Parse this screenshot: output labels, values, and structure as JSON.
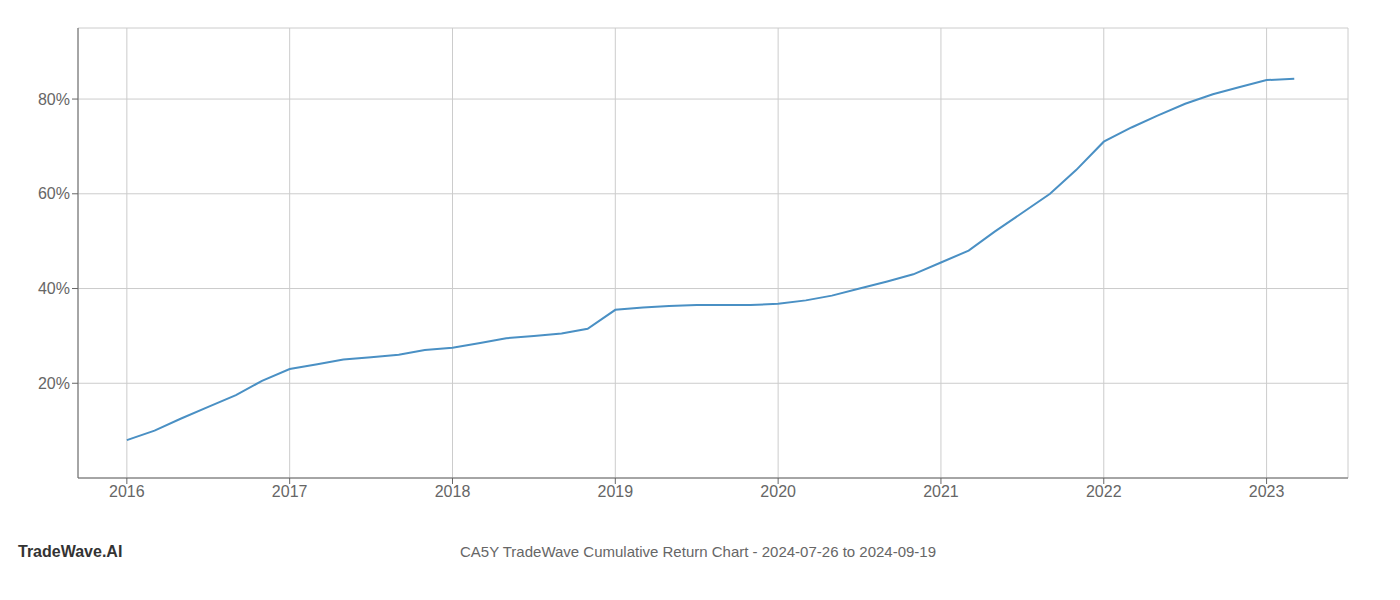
{
  "chart_data": {
    "type": "line",
    "title": "CA5Y TradeWave Cumulative Return Chart - 2024-07-26 to 2024-09-19",
    "annotations": [
      {
        "text": "TradeWave.AI"
      }
    ],
    "x": [
      2016.0,
      2016.17,
      2016.33,
      2016.5,
      2016.67,
      2016.83,
      2017.0,
      2017.17,
      2017.33,
      2017.5,
      2017.67,
      2017.83,
      2018.0,
      2018.17,
      2018.33,
      2018.5,
      2018.67,
      2018.83,
      2019.0,
      2019.17,
      2019.33,
      2019.5,
      2019.67,
      2019.83,
      2020.0,
      2020.17,
      2020.33,
      2020.5,
      2020.67,
      2020.83,
      2021.0,
      2021.17,
      2021.33,
      2021.5,
      2021.67,
      2021.83,
      2022.0,
      2022.17,
      2022.33,
      2022.5,
      2022.67,
      2022.83,
      2023.0,
      2023.17
    ],
    "values": [
      8.0,
      10.0,
      12.5,
      15.0,
      17.5,
      20.5,
      23.0,
      24.0,
      25.0,
      25.5,
      26.0,
      27.0,
      27.5,
      28.5,
      29.5,
      30.0,
      30.5,
      31.5,
      35.5,
      36.0,
      36.3,
      36.5,
      36.5,
      36.5,
      36.8,
      37.5,
      38.5,
      40.0,
      41.5,
      43.0,
      45.5,
      48.0,
      52.0,
      56.0,
      60.0,
      65.0,
      71.0,
      74.0,
      76.5,
      79.0,
      81.0,
      82.5,
      84.0,
      84.3
    ],
    "color": "#4a90c4",
    "xlim": [
      2015.7,
      2023.5
    ],
    "ylim": [
      0,
      95
    ],
    "xticks": [
      2016,
      2017,
      2018,
      2019,
      2020,
      2021,
      2022,
      2023
    ],
    "yticks": [
      {
        "value": 20,
        "label": "20%"
      },
      {
        "value": 40,
        "label": "40%"
      },
      {
        "value": 60,
        "label": "60%"
      },
      {
        "value": 80,
        "label": "80%"
      }
    ],
    "grid": true
  }
}
